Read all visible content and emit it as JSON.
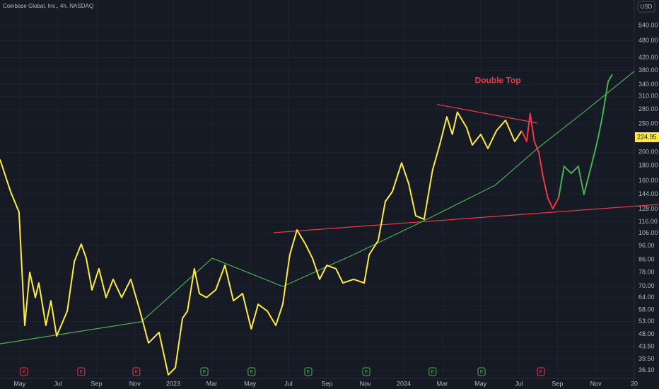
{
  "chart_data": {
    "type": "line",
    "title": "Coinbase Global, Inc., 4h, NASDAQ",
    "currency": "USD",
    "log_scale": true,
    "grid": true,
    "xlim": [
      2.98,
      36
    ],
    "ylim": [
      34.5,
      660
    ],
    "xticks": [
      {
        "value": 4,
        "label": "May"
      },
      {
        "value": 6,
        "label": "Jul"
      },
      {
        "value": 8,
        "label": "Sep"
      },
      {
        "value": 10,
        "label": "Nov"
      },
      {
        "value": 12,
        "label": "2023"
      },
      {
        "value": 14,
        "label": "Mar"
      },
      {
        "value": 16,
        "label": "May"
      },
      {
        "value": 18,
        "label": "Jul"
      },
      {
        "value": 20,
        "label": "Sep"
      },
      {
        "value": 22,
        "label": "Nov"
      },
      {
        "value": 24,
        "label": "2024"
      },
      {
        "value": 26,
        "label": "Mar"
      },
      {
        "value": 28,
        "label": "May"
      },
      {
        "value": 30,
        "label": "Jul"
      },
      {
        "value": 32,
        "label": "Sep"
      },
      {
        "value": 34,
        "label": "Nov"
      },
      {
        "value": 36,
        "label": "20"
      }
    ],
    "yticks": [
      {
        "value": 540,
        "label": "540.00"
      },
      {
        "value": 480,
        "label": "480.00"
      },
      {
        "value": 420,
        "label": "420.00"
      },
      {
        "value": 380,
        "label": "380.00"
      },
      {
        "value": 340,
        "label": "340.00"
      },
      {
        "value": 310,
        "label": "310.00"
      },
      {
        "value": 280,
        "label": "280.00"
      },
      {
        "value": 250,
        "label": "250.00"
      },
      {
        "value": 200,
        "label": "200.00"
      },
      {
        "value": 180,
        "label": "180.00"
      },
      {
        "value": 160,
        "label": "160.00"
      },
      {
        "value": 144,
        "label": "144.00"
      },
      {
        "value": 128,
        "label": "128.00"
      },
      {
        "value": 116,
        "label": "116.00"
      },
      {
        "value": 106,
        "label": "106.00"
      },
      {
        "value": 96,
        "label": "96.00"
      },
      {
        "value": 86,
        "label": "86.00"
      },
      {
        "value": 78,
        "label": "78.00"
      },
      {
        "value": 70,
        "label": "70.00"
      },
      {
        "value": 64,
        "label": "64.00"
      },
      {
        "value": 58,
        "label": "58.00"
      },
      {
        "value": 53,
        "label": "53.00"
      },
      {
        "value": 48,
        "label": "48.00"
      },
      {
        "value": 43.5,
        "label": "43.50"
      },
      {
        "value": 39.5,
        "label": "39.50"
      },
      {
        "value": 36.1,
        "label": "36.10"
      }
    ],
    "last_price": 224.95,
    "last_price_color": "#ffeb3b",
    "series": [
      {
        "color": "#ffeb3b",
        "x": [
          2.98,
          3.53,
          3.97,
          4.27,
          4.53,
          4.82,
          5.0,
          5.37,
          5.63,
          5.93,
          6.48,
          6.85,
          7.21,
          7.47,
          7.77,
          8.13,
          8.5,
          8.87,
          9.31,
          9.79,
          10.27,
          10.71,
          11.26,
          11.74,
          12.11,
          12.48,
          12.74,
          13.1,
          13.36,
          13.73,
          14.21,
          14.69,
          15.13,
          15.61,
          16.06,
          16.42,
          16.9,
          17.34,
          17.7,
          18.07,
          18.44,
          18.88,
          19.25,
          19.62,
          19.99,
          20.47,
          20.83,
          21.39,
          21.94,
          22.2,
          22.67,
          23.04,
          23.41,
          23.89,
          24.26,
          24.62,
          25.06,
          25.5,
          25.87,
          26.24,
          26.53,
          26.79,
          27.27,
          27.57,
          28.01,
          28.38,
          28.82,
          29.3,
          29.78,
          30.14
        ],
        "values": [
          189,
          147,
          125,
          51.4,
          78,
          64,
          71.7,
          51.4,
          62.4,
          47.3,
          57.5,
          84.8,
          97.3,
          87,
          67.9,
          80.2,
          64,
          73.8,
          64,
          73.8,
          57.5,
          44.8,
          48.7,
          34.9,
          36.9,
          54.4,
          57.5,
          80.2,
          66,
          64,
          67.9,
          82.4,
          62.4,
          66,
          50,
          60.7,
          57.5,
          51.4,
          60.7,
          89.6,
          108.7,
          97.3,
          87,
          73.8,
          82.4,
          80.2,
          71.7,
          73.8,
          71.7,
          89.6,
          100.1,
          135.8,
          147,
          184,
          156,
          121.5,
          118.2,
          174,
          211.7,
          264,
          230,
          274,
          243,
          211.7,
          230,
          206,
          236.6,
          257,
          217.5,
          236.6
        ]
      },
      {
        "color": "#f23645",
        "x": [
          30.14,
          30.4,
          30.58,
          30.8,
          31.03,
          31.25,
          31.5,
          31.76,
          32.06
        ],
        "values": [
          236.6,
          217.5,
          271,
          217.5,
          200,
          165,
          139.7,
          128.5,
          139.7
        ]
      },
      {
        "color": "#4caf50",
        "x": [
          32.06,
          32.35,
          32.72,
          33.09,
          33.38,
          33.71,
          34.08,
          34.34,
          34.64,
          34.86
        ],
        "values": [
          139.7,
          179,
          169.5,
          179,
          143.5,
          174,
          217.5,
          264,
          348.6,
          368
        ]
      }
    ],
    "trend_lines": [
      {
        "color": "#f23645",
        "x": [
          25.73,
          30.96
        ],
        "values": [
          291,
          251.4
        ]
      },
      {
        "color": "#f23645",
        "x": [
          17.22,
          37.28
        ],
        "values": [
          106.4,
          132.8
        ]
      },
      {
        "color": "#4caf50",
        "x": [
          2.98,
          10.34,
          14.03,
          17.7,
          21.39,
          25.06,
          28.75,
          30.96,
          33.53,
          36.03
        ],
        "values": [
          44.5,
          52.9,
          87.1,
          69.8,
          89.6,
          116.9,
          154.3,
          206,
          279,
          378.7
        ]
      }
    ],
    "annotation": {
      "text": "Double Top",
      "color": "#f23645",
      "x": 28.9,
      "value": 350
    },
    "earnings_label": "E",
    "earnings": [
      {
        "x": 4.23,
        "color": "#f23645"
      },
      {
        "x": 7.21,
        "color": "#f23645"
      },
      {
        "x": 10.08,
        "color": "#f23645"
      },
      {
        "x": 13.62,
        "color": "#4caf50"
      },
      {
        "x": 16.08,
        "color": "#4caf50"
      },
      {
        "x": 19.03,
        "color": "#4caf50"
      },
      {
        "x": 22.05,
        "color": "#4caf50"
      },
      {
        "x": 25.5,
        "color": "#4caf50"
      },
      {
        "x": 28.05,
        "color": "#4caf50"
      },
      {
        "x": 31.14,
        "color": "#f23645"
      }
    ]
  }
}
